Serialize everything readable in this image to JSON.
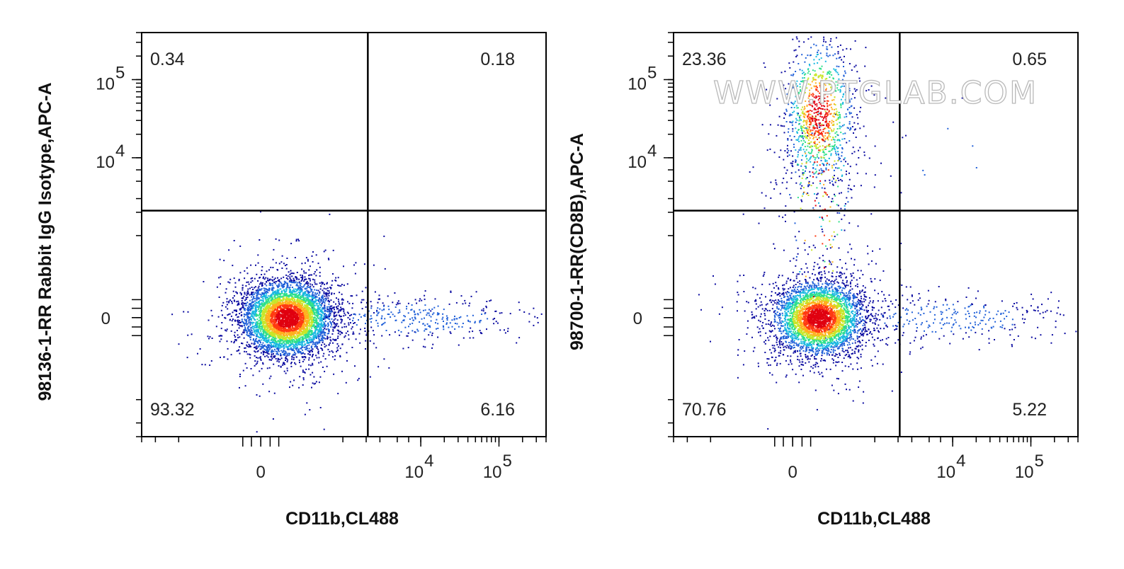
{
  "watermark": "WWW.PTGLAB.COM",
  "colors": {
    "density_scale": [
      "#0a0aa0",
      "#1f5fd8",
      "#19b8e0",
      "#2ee08a",
      "#c8e62a",
      "#ffb01e",
      "#ff3a12",
      "#e00010"
    ],
    "gate_line": "#000000",
    "frame": "#000000"
  },
  "chart_data": [
    {
      "type": "scatter",
      "subtype": "flow-cytometry-density-plot",
      "xlabel": "CD11b,CL488",
      "ylabel": "98136-1-RR Rabbit IgG Isotype,APC-A",
      "x_scale": "biexponential",
      "y_scale": "biexponential",
      "x_ticks": [
        {
          "base": "0",
          "exp": ""
        },
        {
          "base": "10",
          "exp": "4"
        },
        {
          "base": "10",
          "exp": "5"
        }
      ],
      "y_ticks": [
        {
          "base": "0",
          "exp": ""
        },
        {
          "base": "10",
          "exp": "4"
        },
        {
          "base": "10",
          "exp": "5"
        }
      ],
      "gate": {
        "x": 2100,
        "y": 2100
      },
      "quadrants": {
        "upper_left": "0.34",
        "upper_right": "0.18",
        "lower_left": "93.32",
        "lower_right": "6.16"
      },
      "populations": [
        {
          "name": "lower-left",
          "x": 150,
          "y": 0,
          "count": 5200
        },
        {
          "name": "lower-right",
          "x": 9000,
          "y": 0,
          "count": 360
        }
      ]
    },
    {
      "type": "scatter",
      "subtype": "flow-cytometry-density-plot",
      "xlabel": "CD11b,CL488",
      "ylabel": "98700-1-RR(CD8B),APC-A",
      "x_scale": "biexponential",
      "y_scale": "biexponential",
      "x_ticks": [
        {
          "base": "0",
          "exp": ""
        },
        {
          "base": "10",
          "exp": "4"
        },
        {
          "base": "10",
          "exp": "5"
        }
      ],
      "y_ticks": [
        {
          "base": "0",
          "exp": ""
        },
        {
          "base": "10",
          "exp": "4"
        },
        {
          "base": "10",
          "exp": "5"
        }
      ],
      "gate": {
        "x": 2100,
        "y": 2100
      },
      "quadrants": {
        "upper_left": "23.36",
        "upper_right": "0.65",
        "lower_left": "70.76",
        "lower_right": "5.22"
      },
      "populations": [
        {
          "name": "lower-left",
          "x": 150,
          "y": 0,
          "count": 3900
        },
        {
          "name": "upper-left",
          "x": 150,
          "y": 40000,
          "count": 1300
        },
        {
          "name": "lower-right",
          "x": 9000,
          "y": 0,
          "count": 300
        },
        {
          "name": "upper-right",
          "x": 9000,
          "y": 15000,
          "count": 6
        }
      ]
    }
  ]
}
